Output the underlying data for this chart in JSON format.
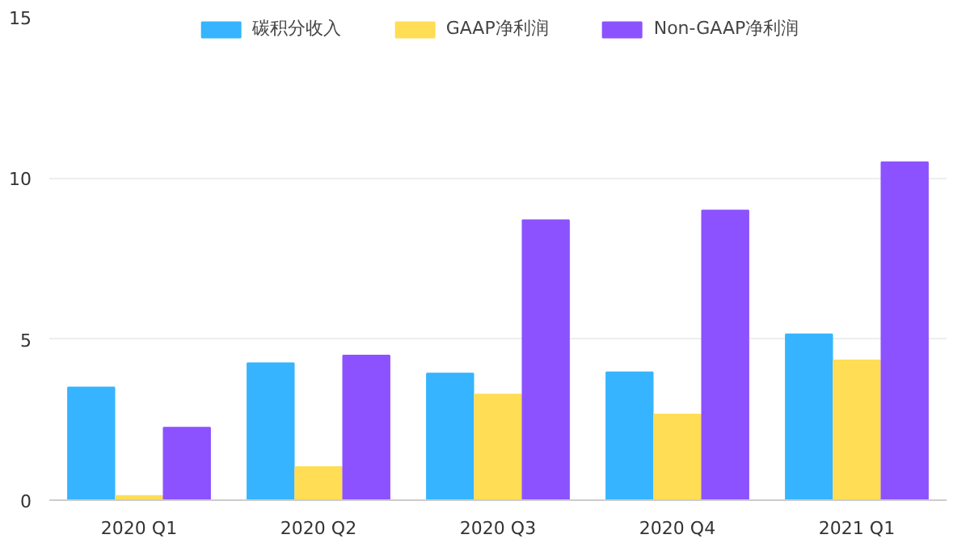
{
  "chart_data": {
    "type": "bar",
    "categories": [
      "2020 Q1",
      "2020 Q2",
      "2020 Q3",
      "2020 Q4",
      "2021 Q1"
    ],
    "series": [
      {
        "name": "碳积分收入",
        "color": "#36b4ff",
        "values": [
          3.5,
          4.25,
          3.93,
          3.97,
          5.15
        ]
      },
      {
        "name": "GAAP净利润",
        "color": "#ffdd55",
        "values": [
          0.13,
          1.03,
          3.28,
          2.66,
          4.34
        ]
      },
      {
        "name": "Non-GAAP净利润",
        "color": "#8c52ff",
        "values": [
          2.25,
          4.49,
          8.69,
          8.99,
          10.49
        ]
      }
    ],
    "ylim": [
      0,
      15
    ],
    "yticks": [
      0,
      5,
      10,
      15
    ],
    "grid": "y",
    "legend": "top"
  }
}
